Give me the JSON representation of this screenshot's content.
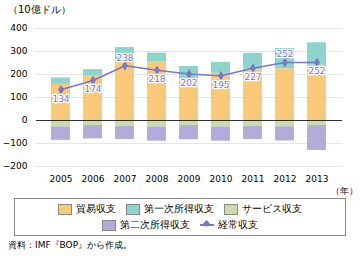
{
  "chart_data": {
    "type": "bar",
    "stacked": true,
    "title": "（10億ドル）",
    "x_label": "（年）",
    "caption": "資料：IMF『BOP』から作成。",
    "categories": [
      "2005",
      "2006",
      "2007",
      "2008",
      "2009",
      "2010",
      "2011",
      "2012",
      "2013"
    ],
    "series": [
      {
        "name": "貿易収支",
        "color": "#f9c97a",
        "values": [
          157,
          193,
          265,
          255,
          180,
          205,
          220,
          225,
          240
        ]
      },
      {
        "name": "第一次所得収支",
        "color": "#8dd5cc",
        "values": [
          28,
          28,
          52,
          38,
          55,
          48,
          72,
          88,
          98
        ]
      },
      {
        "name": "サービス収支",
        "color": "#c8dea8",
        "values": [
          -28,
          -22,
          -25,
          -28,
          -22,
          -28,
          -25,
          -27,
          -22
        ]
      },
      {
        "name": "第二次所得収支",
        "color": "#b3acd8",
        "values": [
          -58,
          -58,
          -58,
          -62,
          -62,
          -62,
          -58,
          -62,
          -108
        ]
      },
      {
        "name": "経常収支",
        "type": "line",
        "color": "#7878c8",
        "marker": "diamond",
        "data_labels": true,
        "values": [
          134,
          174,
          238,
          218,
          202,
          195,
          227,
          252,
          252
        ]
      }
    ],
    "ylim": [
      -200,
      400
    ],
    "yticks": [
      -200,
      -100,
      0,
      100,
      200,
      300,
      400
    ],
    "grid": true,
    "legend": "bottom"
  }
}
